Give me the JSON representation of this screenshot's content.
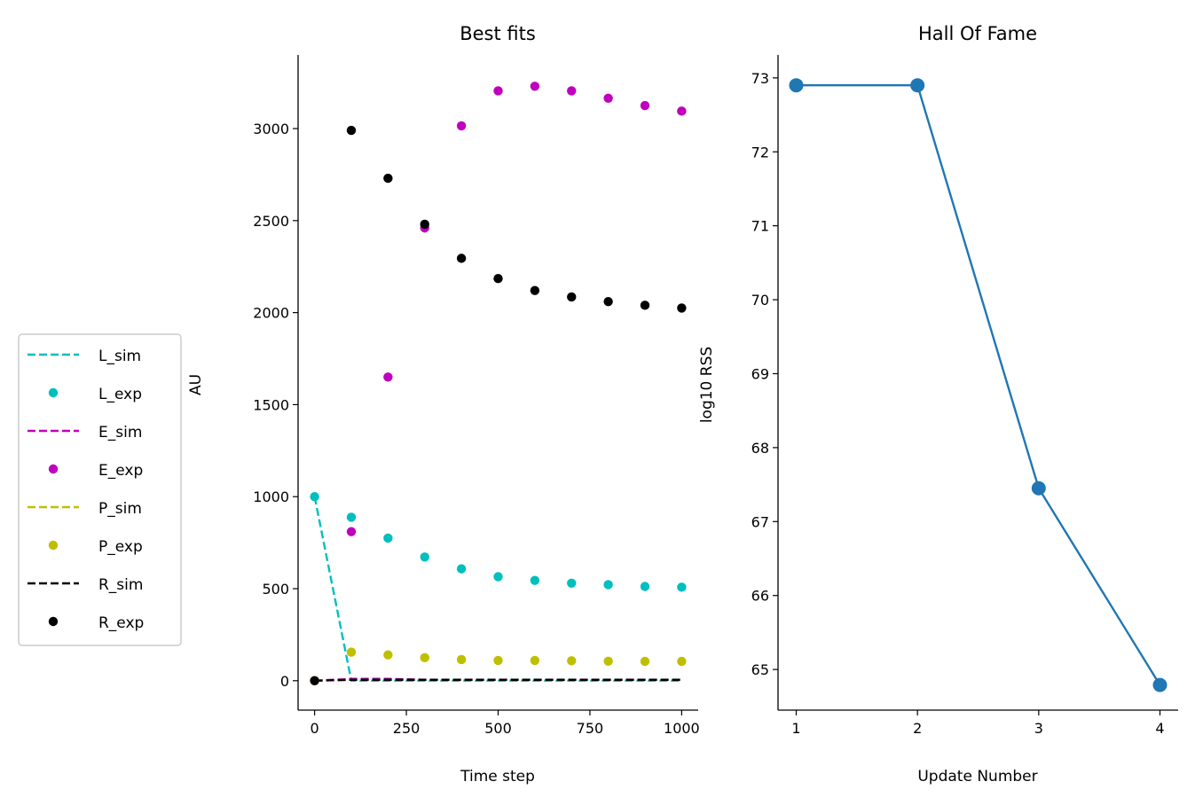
{
  "chart_data": [
    {
      "type": "line",
      "title": "Best fits",
      "xlabel": "Time step",
      "ylabel": "AU",
      "xlim": [
        -45,
        1045
      ],
      "ylim": [
        -160,
        3400
      ],
      "xticks": [
        0,
        250,
        500,
        750,
        1000
      ],
      "yticks": [
        0,
        500,
        1000,
        1500,
        2000,
        2500,
        3000
      ],
      "grid": false,
      "legend_position": "outside-left",
      "series": [
        {
          "name": "L_sim",
          "style": "dashed",
          "color": "#00bfbf",
          "x": [
            0,
            100,
            200,
            300,
            400,
            500,
            600,
            700,
            800,
            900,
            1000
          ],
          "y": [
            1000,
            0,
            0,
            0,
            0,
            0,
            0,
            0,
            0,
            0,
            0
          ]
        },
        {
          "name": "L_exp",
          "style": "dots",
          "color": "#00bfbf",
          "x": [
            0,
            100,
            200,
            300,
            400,
            500,
            600,
            700,
            800,
            900,
            1000
          ],
          "y": [
            1000,
            888,
            775,
            672,
            608,
            565,
            545,
            530,
            522,
            512,
            508
          ]
        },
        {
          "name": "E_sim",
          "style": "dashed",
          "color": "#bf00bf",
          "x": [
            0,
            100,
            200,
            300,
            400,
            500,
            600,
            700,
            800,
            900,
            1000
          ],
          "y": [
            0,
            10,
            10,
            5,
            5,
            5,
            5,
            5,
            5,
            5,
            5
          ]
        },
        {
          "name": "E_exp",
          "style": "dots",
          "color": "#bf00bf",
          "x": [
            0,
            100,
            200,
            300,
            400,
            500,
            600,
            700,
            800,
            900,
            1000
          ],
          "y": [
            0,
            810,
            1650,
            2460,
            3015,
            3205,
            3230,
            3205,
            3165,
            3125,
            3095
          ]
        },
        {
          "name": "P_sim",
          "style": "dashed",
          "color": "#bfbf00",
          "x": [
            0,
            100,
            200,
            300,
            400,
            500,
            600,
            700,
            800,
            900,
            1000
          ],
          "y": [
            0,
            5,
            5,
            5,
            5,
            5,
            5,
            5,
            5,
            5,
            5
          ]
        },
        {
          "name": "P_exp",
          "style": "dots",
          "color": "#bfbf00",
          "x": [
            0,
            100,
            200,
            300,
            400,
            500,
            600,
            700,
            800,
            900,
            1000
          ],
          "y": [
            0,
            155,
            140,
            125,
            115,
            110,
            110,
            108,
            106,
            105,
            105
          ]
        },
        {
          "name": "R_sim",
          "style": "dashed",
          "color": "#000000",
          "x": [
            0,
            100,
            200,
            300,
            400,
            500,
            600,
            700,
            800,
            900,
            1000
          ],
          "y": [
            0,
            5,
            5,
            5,
            5,
            5,
            5,
            5,
            5,
            5,
            5
          ]
        },
        {
          "name": "R_exp",
          "style": "dots",
          "color": "#000000",
          "x": [
            0,
            100,
            200,
            300,
            400,
            500,
            600,
            700,
            800,
            900,
            1000
          ],
          "y": [
            0,
            2990,
            2730,
            2480,
            2295,
            2185,
            2120,
            2085,
            2060,
            2040,
            2025
          ]
        }
      ]
    },
    {
      "type": "line",
      "title": "Hall Of Fame",
      "xlabel": "Update Number",
      "ylabel": "log10 RSS",
      "xlim": [
        0.85,
        4.15
      ],
      "ylim": [
        64.45,
        73.31
      ],
      "xticks": [
        1,
        2,
        3,
        4
      ],
      "yticks": [
        65,
        66,
        67,
        68,
        69,
        70,
        71,
        72,
        73
      ],
      "grid": false,
      "color": "#1f77b4",
      "x": [
        1,
        2,
        3,
        4
      ],
      "y": [
        72.9,
        72.9,
        67.45,
        64.79
      ]
    }
  ]
}
